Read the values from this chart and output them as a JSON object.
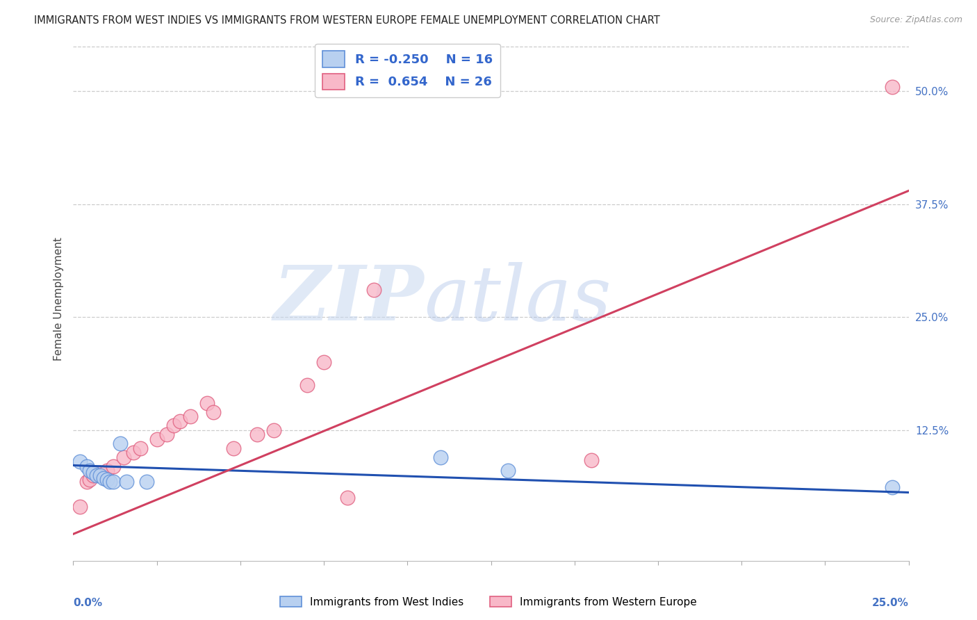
{
  "title": "IMMIGRANTS FROM WEST INDIES VS IMMIGRANTS FROM WESTERN EUROPE FEMALE UNEMPLOYMENT CORRELATION CHART",
  "source": "Source: ZipAtlas.com",
  "ylabel": "Female Unemployment",
  "right_yticks": [
    "50.0%",
    "37.5%",
    "25.0%",
    "12.5%"
  ],
  "right_ytick_vals": [
    0.5,
    0.375,
    0.25,
    0.125
  ],
  "blue_R": -0.25,
  "blue_N": 16,
  "pink_R": 0.654,
  "pink_N": 26,
  "blue_fill": "#b8d0f0",
  "pink_fill": "#f8b8c8",
  "blue_edge": "#6090d8",
  "pink_edge": "#e06080",
  "blue_line_color": "#2050b0",
  "pink_line_color": "#d04060",
  "legend_text_color": "#3366cc",
  "right_axis_color": "#4472c4",
  "blue_points": [
    [
      0.002,
      0.09
    ],
    [
      0.004,
      0.085
    ],
    [
      0.005,
      0.08
    ],
    [
      0.006,
      0.078
    ],
    [
      0.007,
      0.075
    ],
    [
      0.008,
      0.075
    ],
    [
      0.009,
      0.072
    ],
    [
      0.01,
      0.07
    ],
    [
      0.011,
      0.068
    ],
    [
      0.012,
      0.068
    ],
    [
      0.014,
      0.11
    ],
    [
      0.016,
      0.068
    ],
    [
      0.022,
      0.068
    ],
    [
      0.11,
      0.095
    ],
    [
      0.13,
      0.08
    ],
    [
      0.245,
      0.062
    ]
  ],
  "pink_points": [
    [
      0.002,
      0.04
    ],
    [
      0.004,
      0.068
    ],
    [
      0.005,
      0.07
    ],
    [
      0.006,
      0.075
    ],
    [
      0.008,
      0.078
    ],
    [
      0.01,
      0.08
    ],
    [
      0.012,
      0.085
    ],
    [
      0.015,
      0.095
    ],
    [
      0.018,
      0.1
    ],
    [
      0.02,
      0.105
    ],
    [
      0.025,
      0.115
    ],
    [
      0.028,
      0.12
    ],
    [
      0.03,
      0.13
    ],
    [
      0.032,
      0.135
    ],
    [
      0.035,
      0.14
    ],
    [
      0.04,
      0.155
    ],
    [
      0.042,
      0.145
    ],
    [
      0.048,
      0.105
    ],
    [
      0.055,
      0.12
    ],
    [
      0.06,
      0.125
    ],
    [
      0.07,
      0.175
    ],
    [
      0.075,
      0.2
    ],
    [
      0.082,
      0.05
    ],
    [
      0.09,
      0.28
    ],
    [
      0.155,
      0.092
    ],
    [
      0.245,
      0.505
    ]
  ],
  "xmin": 0.0,
  "xmax": 0.25,
  "ymin": -0.02,
  "ymax": 0.56,
  "blue_slope": -0.12,
  "blue_intercept": 0.086,
  "pink_slope": 1.52,
  "pink_intercept": 0.01
}
